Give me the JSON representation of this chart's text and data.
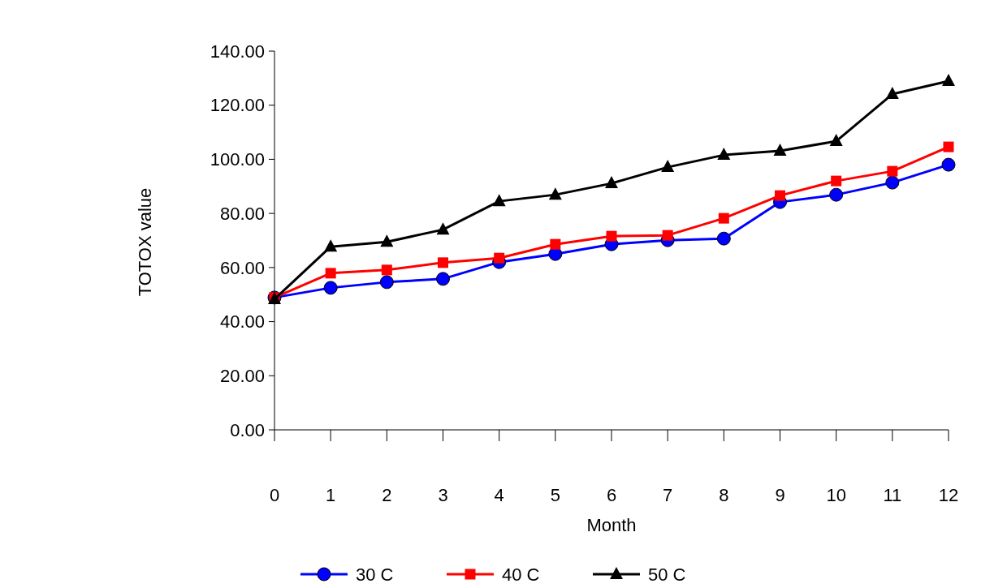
{
  "chart_data": {
    "type": "line",
    "xlabel": "Month",
    "ylabel": "TOTOX value",
    "x": [
      0,
      1,
      2,
      3,
      4,
      5,
      6,
      7,
      8,
      9,
      10,
      11,
      12
    ],
    "series": [
      {
        "name": "30 C",
        "color": "#0000ff",
        "marker": "circle",
        "values": [
          48.9,
          52.5,
          54.6,
          55.8,
          62.0,
          65.0,
          68.6,
          70.1,
          70.7,
          84.2,
          86.9,
          91.4,
          98.0
        ]
      },
      {
        "name": "40 C",
        "color": "#ff0000",
        "marker": "square",
        "values": [
          48.9,
          57.9,
          59.1,
          61.8,
          63.5,
          68.6,
          71.6,
          71.9,
          78.2,
          86.6,
          92.0,
          95.6,
          104.6
        ]
      },
      {
        "name": "50 C",
        "color": "#000000",
        "marker": "triangle",
        "values": [
          48.3,
          67.7,
          69.5,
          74.0,
          84.5,
          86.9,
          91.1,
          97.1,
          101.6,
          103.1,
          106.7,
          124.1,
          128.9
        ]
      }
    ],
    "xlim": [
      0,
      12
    ],
    "xticks": [
      0,
      1,
      2,
      3,
      4,
      5,
      6,
      7,
      8,
      9,
      10,
      11,
      12
    ],
    "ylim": [
      0,
      140
    ],
    "yticks": [
      {
        "value": 0,
        "label": "0.00"
      },
      {
        "value": 20,
        "label": "20.00"
      },
      {
        "value": 40,
        "label": "40.00"
      },
      {
        "value": 60,
        "label": "60.00"
      },
      {
        "value": 80,
        "label": "80.00"
      },
      {
        "value": 100,
        "label": "100.00"
      },
      {
        "value": 120,
        "label": "120.00"
      },
      {
        "value": 140,
        "label": "140.00"
      }
    ],
    "grid": false,
    "legend": "bottom",
    "line_style": "solid"
  }
}
